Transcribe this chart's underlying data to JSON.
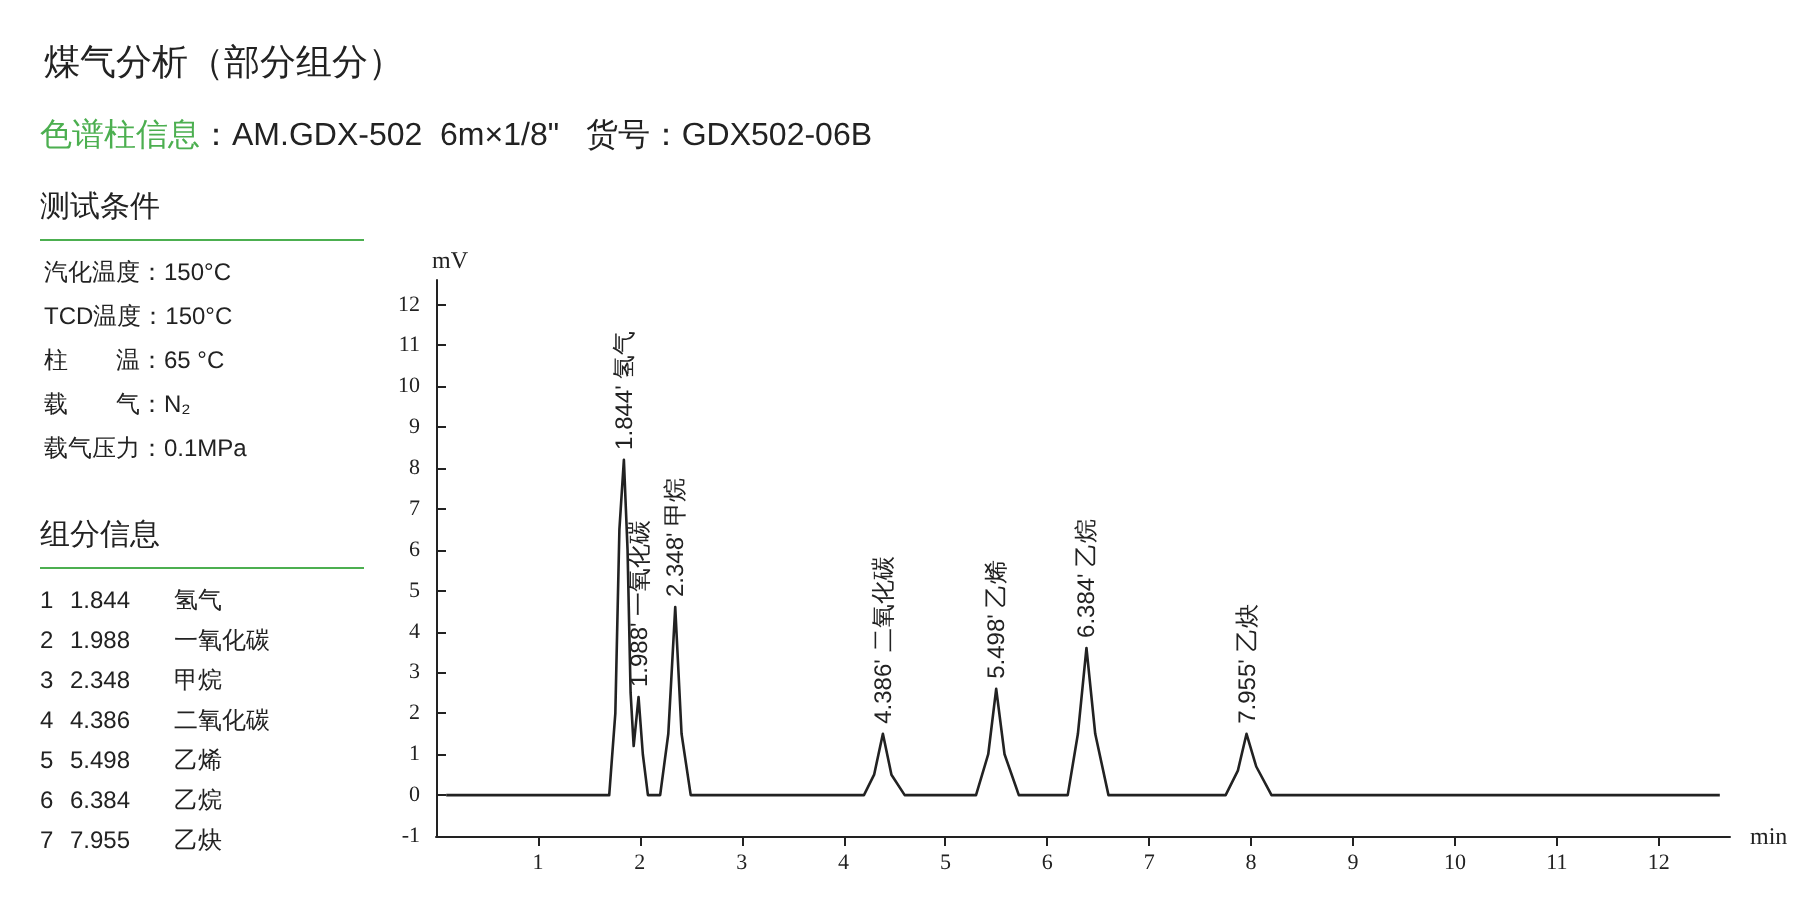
{
  "chart_data": {
    "type": "line",
    "title": "煤气分析（部分组分）",
    "subtitle": "色谱柱信息：AM.GDX-502  6m×1/8\"   货号：GDX502-06B",
    "xlabel": "min",
    "ylabel": "mV",
    "xlim": [
      0,
      12.7
    ],
    "ylim": [
      -1,
      12.6
    ],
    "xticks": [
      1,
      2,
      3,
      4,
      5,
      6,
      7,
      8,
      9,
      10,
      11,
      12
    ],
    "yticks": [
      -1,
      0,
      1,
      2,
      3,
      4,
      5,
      6,
      7,
      8,
      9,
      10,
      11,
      12
    ],
    "grid": false,
    "series": [
      {
        "color": "#222222",
        "x": [
          0.1,
          1.7,
          1.76,
          1.8,
          1.844,
          1.88,
          1.91,
          1.94,
          1.988,
          2.03,
          2.08,
          2.2,
          2.28,
          2.348,
          2.41,
          2.5,
          4.2,
          4.3,
          4.386,
          4.47,
          4.6,
          5.3,
          5.42,
          5.498,
          5.58,
          5.72,
          6.2,
          6.3,
          6.384,
          6.47,
          6.6,
          7.75,
          7.87,
          7.955,
          8.05,
          8.2,
          12.6
        ],
        "values": [
          0,
          0,
          2,
          6.5,
          8.2,
          6,
          2.5,
          1.2,
          2.4,
          1,
          0,
          0,
          1.5,
          4.6,
          1.5,
          0,
          0,
          0.5,
          1.5,
          0.5,
          0,
          0,
          1,
          2.6,
          1,
          0,
          0,
          1.5,
          3.6,
          1.5,
          0,
          0,
          0.6,
          1.5,
          0.7,
          0,
          0
        ]
      }
    ],
    "annotations": [
      "测试条件",
      "汽化温度：150°C",
      "TCD温度：150°C",
      "柱　　温：65 °C",
      "载　　气：N₂",
      "载气压力：0.1MPa",
      "组分信息",
      "1 1.844 氢气",
      "2 1.988 一氧化碳",
      "3 2.348 甲烷",
      "4 4.386 二氧化碳",
      "5 5.498 乙烯",
      "6 6.384 乙烷",
      "7 7.955 乙炔",
      {
        "text": "1.844' 氢气",
        "x": 1.844,
        "y": 8.2
      },
      {
        "text": "1.988' 一氧化碳",
        "x": 1.988,
        "y": 2.4
      },
      {
        "text": "2.348' 甲烷",
        "x": 2.348,
        "y": 4.6
      },
      {
        "text": "4.386' 二氧化碳",
        "x": 4.386,
        "y": 1.5
      },
      {
        "text": "5.498' 乙烯",
        "x": 5.498,
        "y": 2.6
      },
      {
        "text": "6.384' 乙烷",
        "x": 6.384,
        "y": 3.6
      },
      {
        "text": "7.955' 乙炔",
        "x": 7.955,
        "y": 1.5
      }
    ]
  }
}
